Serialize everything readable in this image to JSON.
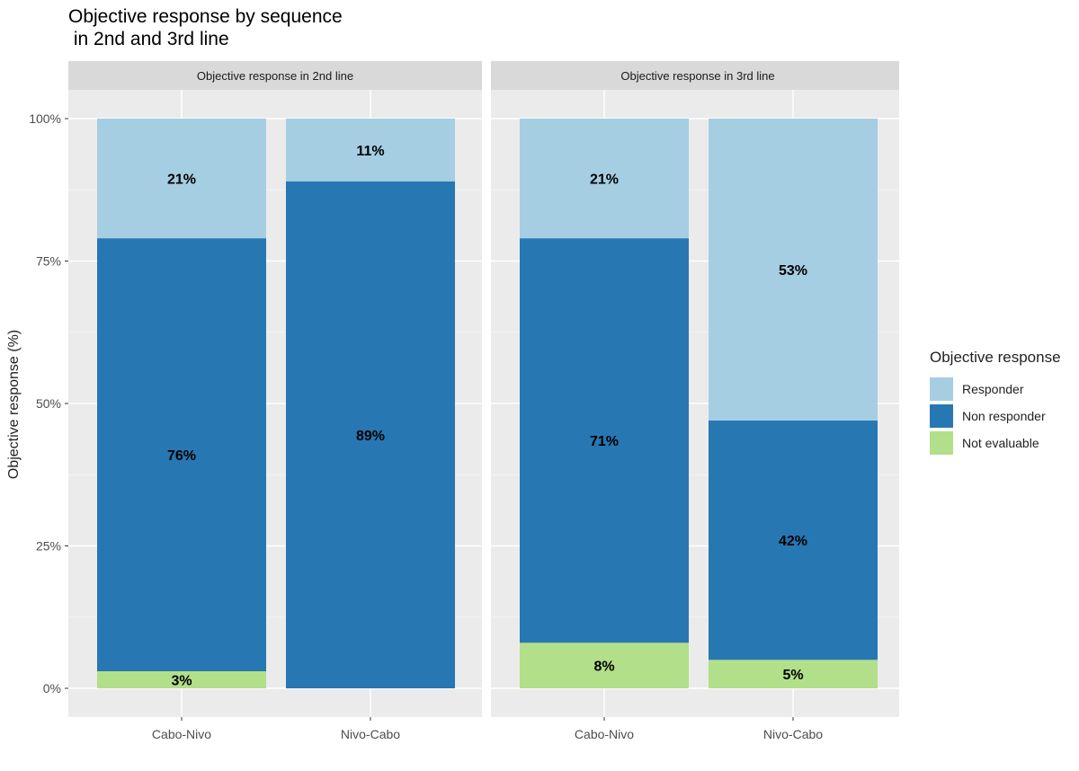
{
  "chart_data": {
    "type": "bar",
    "stacked": true,
    "title": "Objective response by sequence\n in 2nd and 3rd line",
    "ylabel": "Objective response (%)",
    "xlabel": "",
    "ylim": [
      0,
      100
    ],
    "yticks": [
      "0%",
      "25%",
      "50%",
      "75%",
      "100%"
    ],
    "grid": true,
    "legend_position": "right",
    "legend_title": "Objective response",
    "legend": [
      {
        "name": "Responder",
        "color": "#a6cee3"
      },
      {
        "name": "Non responder",
        "color": "#2777b3"
      },
      {
        "name": "Not evaluable",
        "color": "#b2df8a"
      }
    ],
    "facets": [
      {
        "title": "Objective response in 2nd line",
        "categories": [
          "Cabo-Nivo",
          "Nivo-Cabo"
        ],
        "series": [
          {
            "name": "Not evaluable",
            "values": [
              3,
              0
            ],
            "labels": [
              "3%",
              ""
            ]
          },
          {
            "name": "Non responder",
            "values": [
              76,
              89
            ],
            "labels": [
              "76%",
              "89%"
            ]
          },
          {
            "name": "Responder",
            "values": [
              21,
              11
            ],
            "labels": [
              "21%",
              "11%"
            ]
          }
        ]
      },
      {
        "title": "Objective response in 3rd line",
        "categories": [
          "Cabo-Nivo",
          "Nivo-Cabo"
        ],
        "series": [
          {
            "name": "Not evaluable",
            "values": [
              8,
              5
            ],
            "labels": [
              "8%",
              "5%"
            ]
          },
          {
            "name": "Non responder",
            "values": [
              71,
              42
            ],
            "labels": [
              "71%",
              "42%"
            ]
          },
          {
            "name": "Responder",
            "values": [
              21,
              53
            ],
            "labels": [
              "21%",
              "53%"
            ]
          }
        ]
      }
    ]
  }
}
